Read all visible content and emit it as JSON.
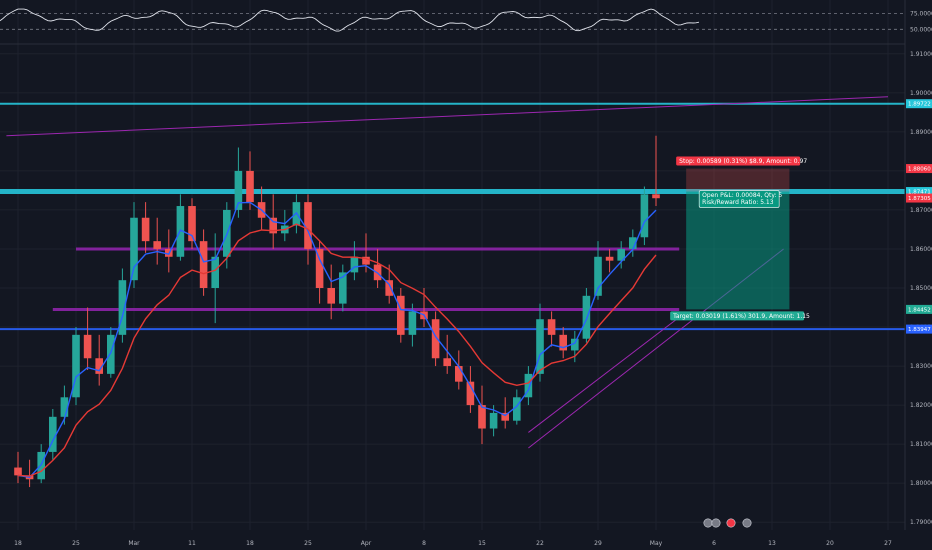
{
  "chart_data": {
    "type": "candlestick",
    "instrument_hint": "",
    "oscillator": {
      "levels": [
        75.0,
        50.0
      ],
      "level_labels": [
        "75.0000",
        "50.0000"
      ]
    },
    "y_axis": {
      "range": [
        1.788,
        1.912
      ],
      "ticks": [
        "1.91000",
        "1.90000",
        "1.89000",
        "1.88000",
        "1.87000",
        "1.86000",
        "1.85000",
        "1.84000",
        "1.83000",
        "1.82000",
        "1.81000",
        "1.80000",
        "1.79000"
      ],
      "tick_values": [
        1.91,
        1.9,
        1.89,
        1.88,
        1.87,
        1.86,
        1.85,
        1.84,
        1.83,
        1.82,
        1.81,
        1.8,
        1.79
      ]
    },
    "x_axis": {
      "ticks": [
        "18",
        "25",
        "Mar",
        "11",
        "18",
        "25",
        "Apr",
        "8",
        "15",
        "22",
        "29",
        "May",
        "6",
        "13",
        "20",
        "27"
      ],
      "tick_index": [
        0,
        5,
        10,
        15,
        20,
        25,
        30,
        35,
        40,
        45,
        50,
        55,
        60,
        65,
        70,
        75
      ]
    },
    "price_tags": [
      {
        "label": "1.89722",
        "value": 1.89722,
        "color": "#26c6da"
      },
      {
        "label": "1.88060",
        "value": 1.8806,
        "color": "#f23645"
      },
      {
        "label": "1.87471",
        "value": 1.87471,
        "color": "#26c6da"
      },
      {
        "label": "1.87305",
        "value": 1.87305,
        "color": "#f23645"
      },
      {
        "label": "1.84452",
        "value": 1.84452,
        "color": "#22ab94"
      },
      {
        "label": "1.83947",
        "value": 1.83947,
        "color": "#2962ff"
      }
    ],
    "horizontal_lines": [
      {
        "value": 1.89722,
        "color": "#26c6da",
        "width": 2
      },
      {
        "value": 1.87471,
        "color": "#26c6da",
        "width": 5
      },
      {
        "value": 1.83947,
        "color": "#2962ff",
        "width": 2
      }
    ],
    "zones": [
      {
        "value": 1.86,
        "from": 5,
        "to": 57,
        "color": "#8e24aa"
      },
      {
        "value": 1.8445,
        "from": 3,
        "to": 57,
        "color": "#8e24aa"
      }
    ],
    "trendlines": [
      {
        "from": [
          -1,
          1.889
        ],
        "to": [
          75,
          1.899
        ],
        "color": "#9c27b0"
      },
      {
        "from": [
          44,
          1.809
        ],
        "to": [
          66,
          1.86
        ],
        "color": "#9c27b0"
      },
      {
        "from": [
          44,
          1.813
        ],
        "to": [
          57,
          1.8425
        ],
        "color": "#9c27b0"
      }
    ],
    "position": {
      "entry": 1.87471,
      "stop": 1.8806,
      "target": 1.84452,
      "start_index": 57.6,
      "end_index": 66.5,
      "stop_label": "Stop: 0.00589 (0.31%) $8.9, Amount: 0.97",
      "pnl_label_1": "Open P&L: 0.00084, Qty: 5",
      "pnl_label_2": "Risk/Reward Ratio: 5.13",
      "target_label": "Target: 0.03019 (1.61%) 301.9, Amount: 1.15"
    },
    "colors": {
      "up": "#26a69a",
      "down": "#ef5350",
      "ema_fast": "#2962ff",
      "ema_slow": "#e53935",
      "bg": "#131722",
      "grid": "#1e222d"
    },
    "candles": [
      [
        1.804,
        1.808,
        1.8,
        1.802
      ],
      [
        1.802,
        1.806,
        1.799,
        1.801
      ],
      [
        1.801,
        1.81,
        1.8,
        1.808
      ],
      [
        1.808,
        1.819,
        1.806,
        1.817
      ],
      [
        1.817,
        1.825,
        1.815,
        1.822
      ],
      [
        1.822,
        1.84,
        1.82,
        1.838
      ],
      [
        1.838,
        1.845,
        1.829,
        1.832
      ],
      [
        1.832,
        1.838,
        1.825,
        1.828
      ],
      [
        1.828,
        1.84,
        1.827,
        1.838
      ],
      [
        1.838,
        1.855,
        1.836,
        1.852
      ],
      [
        1.852,
        1.872,
        1.85,
        1.868
      ],
      [
        1.868,
        1.872,
        1.859,
        1.862
      ],
      [
        1.862,
        1.868,
        1.856,
        1.86
      ],
      [
        1.86,
        1.865,
        1.854,
        1.858
      ],
      [
        1.858,
        1.874,
        1.857,
        1.871
      ],
      [
        1.871,
        1.873,
        1.86,
        1.862
      ],
      [
        1.862,
        1.865,
        1.848,
        1.85
      ],
      [
        1.85,
        1.864,
        1.841,
        1.858
      ],
      [
        1.858,
        1.872,
        1.855,
        1.87
      ],
      [
        1.87,
        1.886,
        1.868,
        1.88
      ],
      [
        1.88,
        1.885,
        1.87,
        1.872
      ],
      [
        1.872,
        1.876,
        1.865,
        1.868
      ],
      [
        1.868,
        1.874,
        1.86,
        1.864
      ],
      [
        1.864,
        1.87,
        1.862,
        1.866
      ],
      [
        1.866,
        1.874,
        1.864,
        1.872
      ],
      [
        1.872,
        1.874,
        1.856,
        1.86
      ],
      [
        1.86,
        1.862,
        1.846,
        1.85
      ],
      [
        1.85,
        1.856,
        1.842,
        1.846
      ],
      [
        1.846,
        1.856,
        1.844,
        1.854
      ],
      [
        1.854,
        1.862,
        1.852,
        1.858
      ],
      [
        1.858,
        1.864,
        1.854,
        1.856
      ],
      [
        1.856,
        1.86,
        1.85,
        1.852
      ],
      [
        1.852,
        1.856,
        1.846,
        1.848
      ],
      [
        1.848,
        1.85,
        1.836,
        1.838
      ],
      [
        1.838,
        1.846,
        1.835,
        1.844
      ],
      [
        1.844,
        1.85,
        1.84,
        1.842
      ],
      [
        1.842,
        1.844,
        1.83,
        1.832
      ],
      [
        1.832,
        1.838,
        1.828,
        1.83
      ],
      [
        1.83,
        1.834,
        1.824,
        1.826
      ],
      [
        1.826,
        1.83,
        1.818,
        1.82
      ],
      [
        1.82,
        1.825,
        1.81,
        1.814
      ],
      [
        1.814,
        1.82,
        1.812,
        1.818
      ],
      [
        1.818,
        1.822,
        1.814,
        1.816
      ],
      [
        1.816,
        1.824,
        1.815,
        1.822
      ],
      [
        1.822,
        1.83,
        1.82,
        1.828
      ],
      [
        1.828,
        1.846,
        1.826,
        1.842
      ],
      [
        1.842,
        1.844,
        1.835,
        1.838
      ],
      [
        1.838,
        1.84,
        1.832,
        1.834
      ],
      [
        1.834,
        1.839,
        1.831,
        1.837
      ],
      [
        1.837,
        1.85,
        1.836,
        1.848
      ],
      [
        1.848,
        1.862,
        1.847,
        1.858
      ],
      [
        1.858,
        1.86,
        1.854,
        1.857
      ],
      [
        1.857,
        1.862,
        1.855,
        1.86
      ],
      [
        1.86,
        1.865,
        1.858,
        1.863
      ],
      [
        1.863,
        1.876,
        1.861,
        1.874
      ],
      [
        1.874,
        1.889,
        1.871,
        1.873
      ]
    ]
  }
}
